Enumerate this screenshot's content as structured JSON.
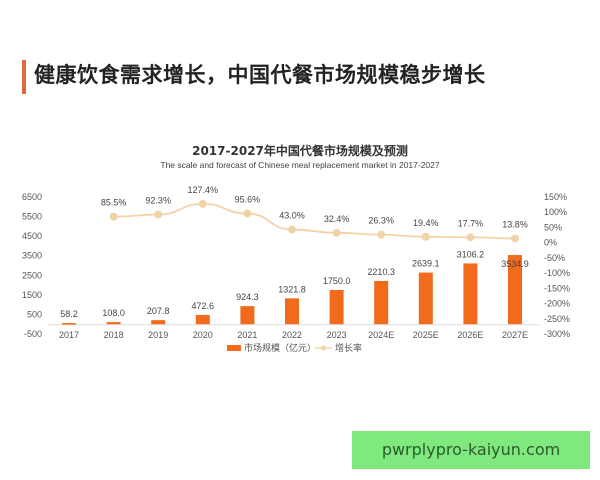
{
  "headline": "健康饮食需求增长，中国代餐市场规模稳步增长",
  "watermark": "pwrplypro-kaiyun.com",
  "chart_data": {
    "type": "bar+line",
    "title": "2017-2027年中国代餐市场规模及预测",
    "subtitle": "The scale and forecast of Chinese meal replacement market in 2017-2027",
    "categories": [
      "2017",
      "2018",
      "2019",
      "2020",
      "2021",
      "2022",
      "2023",
      "2024E",
      "2025E",
      "2026E",
      "2027E"
    ],
    "series": [
      {
        "name": "市场规模（亿元）",
        "type": "bar",
        "axis": "left",
        "color": "#f26b1d",
        "values": [
          58.2,
          108.0,
          207.8,
          472.6,
          924.3,
          1321.8,
          1750.0,
          2210.3,
          2639.1,
          3106.2,
          3534.9
        ],
        "labels": [
          "58.2",
          "108.0",
          "207.8",
          "472.6",
          "924.3",
          "1321.8",
          "1750.0",
          "2210.3",
          "2639.1",
          "3106.2",
          "3534.9"
        ]
      },
      {
        "name": "增长率",
        "type": "line",
        "axis": "right",
        "color": "#f2d3a8",
        "values": [
          null,
          85.5,
          92.3,
          127.4,
          95.6,
          43.0,
          32.4,
          26.3,
          19.4,
          17.7,
          13.8
        ],
        "labels": [
          "",
          "85.5%",
          "92.3%",
          "127.4%",
          "95.6%",
          "43.0%",
          "32.4%",
          "26.3%",
          "19.4%",
          "17.7%",
          "13.8%"
        ]
      }
    ],
    "y_left": {
      "ylim": [
        -500,
        6500
      ],
      "ticks": [
        "6500",
        "5500",
        "4500",
        "3500",
        "2500",
        "1500",
        "500",
        "-500"
      ]
    },
    "y_right": {
      "ylim": [
        -300,
        150
      ],
      "ticks": [
        "150%",
        "100%",
        "50%",
        "0%",
        "-50%",
        "-100%",
        "-150%",
        "-200%",
        "-250%",
        "-300%"
      ]
    },
    "legend_position": "bottom",
    "grid": false
  }
}
